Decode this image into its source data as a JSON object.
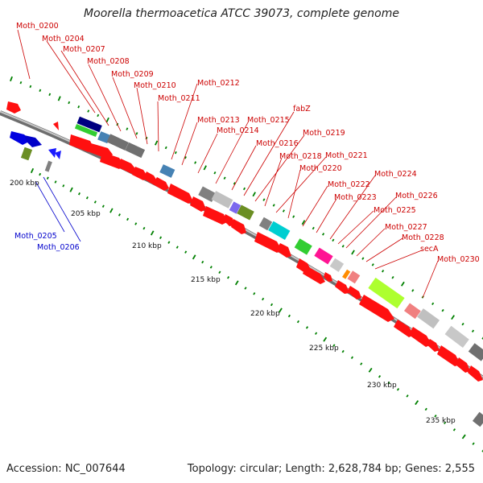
{
  "title": "Moorella thermoacetica ATCC 39073, complete genome",
  "footer": {
    "accession": "Accession: NC_007644",
    "topology": "Topology: circular; Length: 2,628,784 bp; Genes: 2,555"
  },
  "colors": {
    "cds_forward": "#ff0000",
    "cds_reverse": "#0000ff",
    "label_forward": "#cc0000",
    "label_reverse": "#0000cc",
    "backbone": "#909090",
    "tick": "#008000"
  },
  "scale_labels": [
    "200 kbp",
    "205 kbp",
    "210 kbp",
    "215 kbp",
    "220 kbp",
    "225 kbp",
    "230 kbp",
    "235 kbp"
  ],
  "gene_labels_forward": [
    "Moth_0200",
    "Moth_0204",
    "Moth_0207",
    "Moth_0208",
    "Moth_0209",
    "Moth_0210",
    "Moth_0211",
    "Moth_0212",
    "Moth_0213",
    "Moth_0214",
    "Moth_0215",
    "fabZ",
    "Moth_0216",
    "Moth_0219",
    "Moth_0218",
    "Moth_0221",
    "Moth_0220",
    "Moth_0222",
    "Moth_0224",
    "Moth_0223",
    "Moth_0226",
    "Moth_0225",
    "Moth_0227",
    "Moth_0228",
    "secA",
    "Moth_0230"
  ],
  "gene_labels_reverse": [
    "Moth_0205",
    "Moth_0206"
  ]
}
